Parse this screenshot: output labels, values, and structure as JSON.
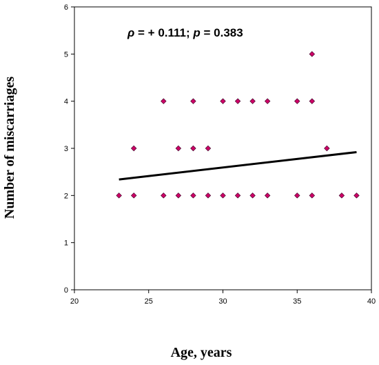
{
  "chart_data": {
    "type": "scatter",
    "title": "",
    "xlabel": "Age, years",
    "ylabel": "Number of miscarriages",
    "xlim": [
      20,
      40
    ],
    "ylim": [
      0,
      6
    ],
    "x_ticks": [
      "20",
      "25",
      "30",
      "35",
      "40"
    ],
    "y_ticks": [
      "0",
      "1",
      "2",
      "3",
      "4",
      "5",
      "6"
    ],
    "annotation": {
      "rho_symbol": "ρ",
      "rho_text": " = + 0.111; ",
      "p_symbol": "p",
      "p_text": " = 0.383"
    },
    "grid": false,
    "legend": "none",
    "marker_color": "#cc0066",
    "trendline_color": "#000000",
    "points": [
      {
        "x": 23,
        "y": 2
      },
      {
        "x": 24,
        "y": 2
      },
      {
        "x": 24,
        "y": 3
      },
      {
        "x": 26,
        "y": 2
      },
      {
        "x": 26,
        "y": 4
      },
      {
        "x": 27,
        "y": 2
      },
      {
        "x": 27,
        "y": 3
      },
      {
        "x": 28,
        "y": 2
      },
      {
        "x": 28,
        "y": 3
      },
      {
        "x": 28,
        "y": 4
      },
      {
        "x": 29,
        "y": 2
      },
      {
        "x": 29,
        "y": 3
      },
      {
        "x": 30,
        "y": 2
      },
      {
        "x": 30,
        "y": 4
      },
      {
        "x": 31,
        "y": 2
      },
      {
        "x": 31,
        "y": 4
      },
      {
        "x": 32,
        "y": 2
      },
      {
        "x": 32,
        "y": 4
      },
      {
        "x": 33,
        "y": 2
      },
      {
        "x": 33,
        "y": 4
      },
      {
        "x": 35,
        "y": 2
      },
      {
        "x": 35,
        "y": 4
      },
      {
        "x": 36,
        "y": 2
      },
      {
        "x": 36,
        "y": 4
      },
      {
        "x": 36,
        "y": 5
      },
      {
        "x": 37,
        "y": 3
      },
      {
        "x": 38,
        "y": 2
      },
      {
        "x": 39,
        "y": 2
      }
    ],
    "trendline": [
      {
        "x": 23,
        "y": 2.34
      },
      {
        "x": 39,
        "y": 2.92
      }
    ]
  }
}
